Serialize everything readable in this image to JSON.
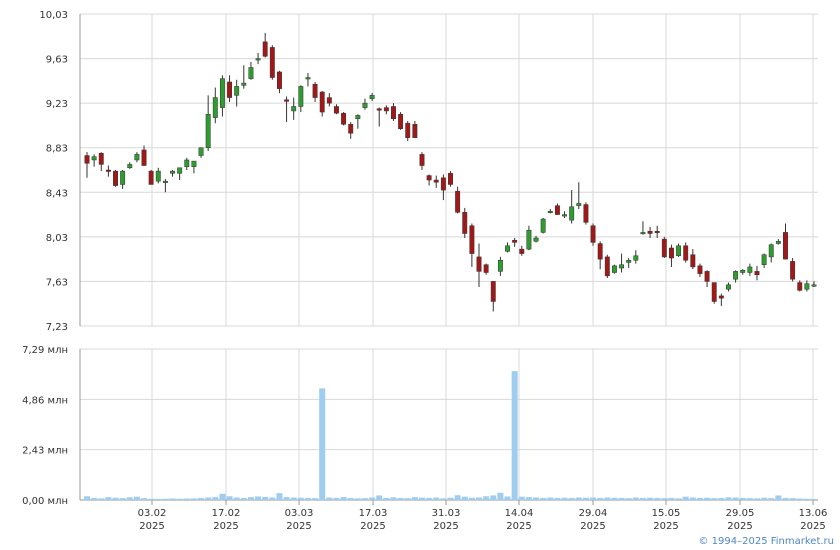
{
  "colors": {
    "up": "#2e9c2e",
    "down": "#a01818",
    "volume": "#9fcdf0",
    "grid": "#d8d8d8",
    "axis": "#999999"
  },
  "copyright": "© 1994–2025 Finmarket.ru",
  "chart_data": [
    {
      "type": "candlestick",
      "ylim": [
        7.23,
        10.03
      ],
      "yticks": [
        "10,03",
        "9,63",
        "9,23",
        "8,83",
        "8,43",
        "8,03",
        "7,63",
        "7,23"
      ],
      "xticks": [
        {
          "date": "03.02",
          "year": "2025"
        },
        {
          "date": "17.02",
          "year": "2025"
        },
        {
          "date": "03.03",
          "year": "2025"
        },
        {
          "date": "17.03",
          "year": "2025"
        },
        {
          "date": "31.03",
          "year": "2025"
        },
        {
          "date": "14.04",
          "year": "2025"
        },
        {
          "date": "29.04",
          "year": "2025"
        },
        {
          "date": "15.05",
          "year": "2025"
        },
        {
          "date": "29.05",
          "year": "2025"
        },
        {
          "date": "13.06",
          "year": "2025"
        }
      ],
      "candles": [
        [
          8.76,
          8.79,
          8.56,
          8.69
        ],
        [
          8.72,
          8.77,
          8.66,
          8.75
        ],
        [
          8.78,
          8.79,
          8.62,
          8.68
        ],
        [
          8.63,
          8.67,
          8.57,
          8.62
        ],
        [
          8.62,
          8.63,
          8.48,
          8.49
        ],
        [
          8.5,
          8.63,
          8.46,
          8.62
        ],
        [
          8.65,
          8.7,
          8.64,
          8.68
        ],
        [
          8.72,
          8.79,
          8.7,
          8.77
        ],
        [
          8.81,
          8.85,
          8.67,
          8.67
        ],
        [
          8.62,
          8.63,
          8.5,
          8.5
        ],
        [
          8.53,
          8.65,
          8.51,
          8.62
        ],
        [
          8.53,
          8.55,
          8.43,
          8.53
        ],
        [
          8.6,
          8.63,
          8.57,
          8.62
        ],
        [
          8.6,
          8.65,
          8.54,
          8.65
        ],
        [
          8.66,
          8.74,
          8.63,
          8.72
        ],
        [
          8.66,
          8.71,
          8.6,
          8.71
        ],
        [
          8.76,
          8.83,
          8.74,
          8.83
        ],
        [
          8.83,
          9.3,
          8.8,
          9.13
        ],
        [
          9.1,
          9.37,
          9.05,
          9.28
        ],
        [
          9.19,
          9.48,
          9.11,
          9.45
        ],
        [
          9.42,
          9.48,
          9.24,
          9.28
        ],
        [
          9.3,
          9.44,
          9.2,
          9.38
        ],
        [
          9.39,
          9.57,
          9.36,
          9.41
        ],
        [
          9.45,
          9.6,
          9.44,
          9.55
        ],
        [
          9.62,
          9.68,
          9.58,
          9.63
        ],
        [
          9.78,
          9.86,
          9.64,
          9.65
        ],
        [
          9.73,
          9.75,
          9.44,
          9.46
        ],
        [
          9.51,
          9.52,
          9.32,
          9.36
        ],
        [
          9.26,
          9.29,
          9.06,
          9.25
        ],
        [
          9.16,
          9.28,
          9.08,
          9.2
        ],
        [
          9.2,
          9.39,
          9.15,
          9.38
        ],
        [
          9.45,
          9.5,
          9.38,
          9.46
        ],
        [
          9.4,
          9.42,
          9.24,
          9.28
        ],
        [
          9.33,
          9.34,
          9.11,
          9.15
        ],
        [
          9.28,
          9.32,
          9.2,
          9.23
        ],
        [
          9.2,
          9.22,
          9.13,
          9.14
        ],
        [
          9.14,
          9.15,
          9.03,
          9.04
        ],
        [
          9.04,
          9.06,
          8.91,
          8.96
        ],
        [
          9.09,
          9.13,
          9.0,
          9.12
        ],
        [
          9.19,
          9.27,
          9.17,
          9.23
        ],
        [
          9.27,
          9.32,
          9.25,
          9.3
        ],
        [
          9.18,
          9.19,
          9.02,
          9.17
        ],
        [
          9.19,
          9.21,
          9.13,
          9.16
        ],
        [
          9.2,
          9.23,
          9.07,
          9.09
        ],
        [
          9.13,
          9.15,
          8.99,
          9.0
        ],
        [
          9.05,
          9.07,
          8.89,
          8.92
        ],
        [
          9.04,
          9.07,
          8.92,
          8.92
        ],
        [
          8.77,
          8.79,
          8.63,
          8.67
        ],
        [
          8.58,
          8.59,
          8.49,
          8.54
        ],
        [
          8.54,
          8.58,
          8.47,
          8.52
        ],
        [
          8.56,
          8.59,
          8.36,
          8.45
        ],
        [
          8.6,
          8.62,
          8.48,
          8.5
        ],
        [
          8.44,
          8.48,
          8.24,
          8.25
        ],
        [
          8.25,
          8.29,
          8.02,
          8.06
        ],
        [
          8.13,
          8.15,
          7.76,
          7.88
        ],
        [
          7.85,
          7.97,
          7.58,
          7.72
        ],
        [
          7.78,
          7.79,
          7.69,
          7.71
        ],
        [
          7.63,
          7.63,
          7.36,
          7.45
        ],
        [
          7.72,
          7.85,
          7.68,
          7.82
        ],
        [
          7.9,
          7.98,
          7.89,
          7.95
        ],
        [
          8.0,
          8.02,
          7.94,
          7.98
        ],
        [
          7.92,
          7.95,
          7.86,
          7.88
        ],
        [
          7.92,
          8.13,
          7.91,
          8.09
        ],
        [
          7.99,
          8.04,
          7.98,
          8.02
        ],
        [
          8.07,
          8.2,
          8.06,
          8.19
        ],
        [
          8.26,
          8.28,
          8.24,
          8.26
        ],
        [
          8.31,
          8.33,
          8.23,
          8.23
        ],
        [
          8.23,
          8.26,
          8.2,
          8.23
        ],
        [
          8.18,
          8.45,
          8.15,
          8.3
        ],
        [
          8.31,
          8.52,
          8.28,
          8.33
        ],
        [
          8.32,
          8.34,
          8.14,
          8.16
        ],
        [
          8.13,
          8.15,
          7.95,
          7.98
        ],
        [
          7.97,
          7.99,
          7.74,
          7.83
        ],
        [
          7.85,
          7.87,
          7.66,
          7.68
        ],
        [
          7.71,
          7.78,
          7.7,
          7.77
        ],
        [
          7.75,
          7.88,
          7.71,
          7.78
        ],
        [
          7.8,
          7.84,
          7.75,
          7.82
        ],
        [
          7.82,
          7.91,
          7.79,
          7.86
        ],
        [
          8.06,
          8.17,
          8.05,
          8.07
        ],
        [
          8.08,
          8.12,
          8.02,
          8.06
        ],
        [
          8.08,
          8.13,
          8.02,
          8.07
        ],
        [
          8.01,
          8.03,
          7.84,
          7.85
        ],
        [
          7.93,
          7.96,
          7.76,
          7.84
        ],
        [
          7.86,
          7.97,
          7.85,
          7.95
        ],
        [
          7.95,
          7.98,
          7.8,
          7.82
        ],
        [
          7.87,
          7.92,
          7.74,
          7.76
        ],
        [
          7.77,
          7.79,
          7.67,
          7.7
        ],
        [
          7.72,
          7.73,
          7.58,
          7.63
        ],
        [
          7.62,
          7.62,
          7.43,
          7.45
        ],
        [
          7.5,
          7.52,
          7.41,
          7.48
        ],
        [
          7.56,
          7.62,
          7.54,
          7.6
        ],
        [
          7.65,
          7.73,
          7.62,
          7.72
        ],
        [
          7.71,
          7.74,
          7.69,
          7.73
        ],
        [
          7.71,
          7.79,
          7.68,
          7.76
        ],
        [
          7.72,
          7.77,
          7.64,
          7.69
        ],
        [
          7.78,
          7.88,
          7.75,
          7.87
        ],
        [
          7.85,
          7.97,
          7.8,
          7.96
        ],
        [
          7.97,
          8.01,
          7.96,
          7.99
        ],
        [
          8.07,
          8.15,
          7.84,
          7.83
        ],
        [
          7.81,
          7.84,
          7.63,
          7.65
        ],
        [
          7.62,
          7.64,
          7.54,
          7.55
        ],
        [
          7.56,
          7.64,
          7.54,
          7.61
        ],
        [
          7.6,
          7.63,
          7.58,
          7.6
        ]
      ]
    },
    {
      "type": "bar",
      "ylabel_unit": "млн",
      "ylim": [
        0,
        7.29
      ],
      "yticks": [
        "7,29 млн",
        "4,86 млн",
        "2,43 млн",
        "0,00 млн"
      ],
      "values": [
        0.18,
        0.1,
        0.08,
        0.14,
        0.11,
        0.09,
        0.13,
        0.16,
        0.09,
        0.06,
        0.05,
        0.06,
        0.07,
        0.06,
        0.07,
        0.08,
        0.1,
        0.12,
        0.14,
        0.3,
        0.18,
        0.12,
        0.1,
        0.14,
        0.17,
        0.15,
        0.12,
        0.33,
        0.14,
        0.12,
        0.11,
        0.1,
        0.09,
        5.39,
        0.12,
        0.1,
        0.14,
        0.1,
        0.08,
        0.09,
        0.12,
        0.22,
        0.1,
        0.13,
        0.1,
        0.09,
        0.14,
        0.11,
        0.1,
        0.12,
        0.08,
        0.11,
        0.23,
        0.16,
        0.11,
        0.12,
        0.18,
        0.22,
        0.35,
        0.17,
        6.22,
        0.16,
        0.14,
        0.12,
        0.1,
        0.12,
        0.1,
        0.11,
        0.1,
        0.12,
        0.11,
        0.12,
        0.1,
        0.12,
        0.11,
        0.1,
        0.09,
        0.12,
        0.1,
        0.11,
        0.1,
        0.09,
        0.1,
        0.08,
        0.16,
        0.12,
        0.1,
        0.11,
        0.09,
        0.1,
        0.13,
        0.12,
        0.1,
        0.09,
        0.08,
        0.11,
        0.09,
        0.22,
        0.1,
        0.09,
        0.07,
        0.06,
        0.05
      ]
    }
  ]
}
